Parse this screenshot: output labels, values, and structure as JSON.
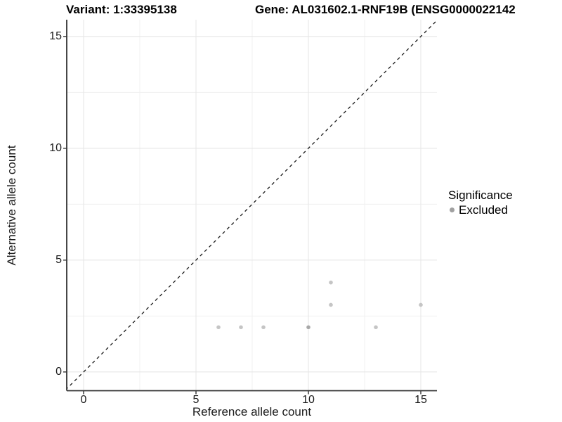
{
  "titles": {
    "left": "Variant: 1:33395138",
    "right": "Gene: AL031602.1-RNF19B (ENSG0000022142"
  },
  "chart_data": {
    "type": "scatter",
    "title": "Variant: 1:33395138 | Gene: AL031602.1-RNF19B (ENSG0000022142",
    "xlabel": "Reference allele count",
    "ylabel": "Alternative allele count",
    "xlim": [
      -0.75,
      15.75
    ],
    "ylim": [
      -0.85,
      15.75
    ],
    "x_ticks": [
      0,
      5,
      10,
      15
    ],
    "y_ticks": [
      0,
      5,
      10,
      15
    ],
    "x_minor_ticks": [
      2.5,
      7.5,
      12.5
    ],
    "y_minor_ticks": [
      2.5,
      7.5,
      12.5
    ],
    "grid": true,
    "legend": {
      "title": "Significance",
      "position": "right",
      "entries": [
        {
          "label": "Excluded",
          "color": "#a0a0a0"
        }
      ]
    },
    "series": [
      {
        "name": "Excluded",
        "color": "#c5c5c5",
        "dense_color": "#a8a8a8",
        "points": [
          {
            "x": 6,
            "y": 2
          },
          {
            "x": 7,
            "y": 2
          },
          {
            "x": 8,
            "y": 2
          },
          {
            "x": 10,
            "y": 2,
            "dense": true
          },
          {
            "x": 11,
            "y": 3
          },
          {
            "x": 11,
            "y": 4
          },
          {
            "x": 13,
            "y": 2
          },
          {
            "x": 15,
            "y": 3
          }
        ]
      }
    ],
    "reference_line": {
      "type": "diagonal",
      "equation": "y = x",
      "style": "dashed",
      "color": "#1a1a1a"
    },
    "colors": {
      "major_grid": "#e6e6e6",
      "minor_grid": "#f0f0f0",
      "axis_line": "#333333",
      "tick_mark": "#333333"
    }
  }
}
